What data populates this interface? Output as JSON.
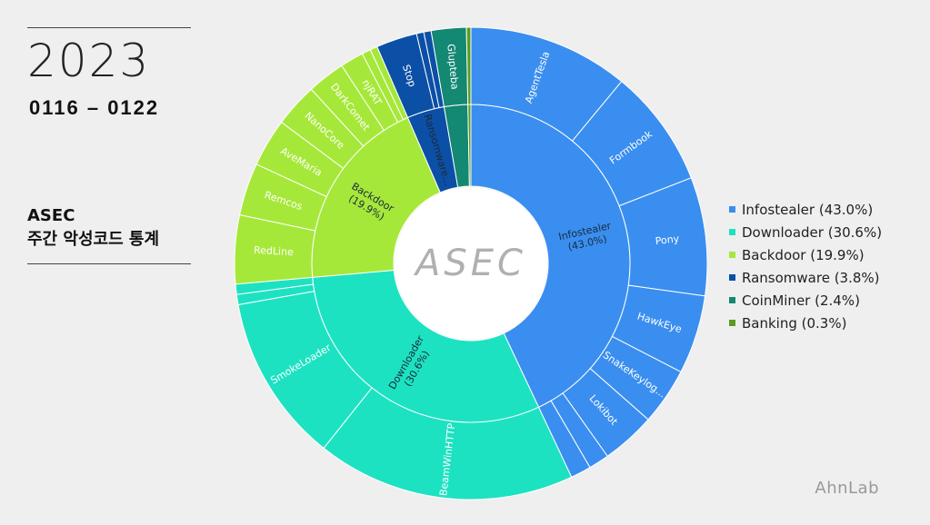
{
  "header": {
    "year": "2023",
    "date_range": "0116 – 0122",
    "title_line1": "ASEC",
    "title_line2": "주간 악성코드 통계"
  },
  "center_logo": "ASEC",
  "brand": "AhnLab",
  "colors": {
    "Infostealer": "#3a8ef0",
    "Downloader": "#1de2c2",
    "Backdoor": "#a6e83a",
    "Ransomware": "#0c4fa6",
    "CoinMiner": "#138872",
    "Banking": "#5a9c1e"
  },
  "chart_data": {
    "type": "sunburst",
    "title": "",
    "legend_position": "right",
    "categories": [
      {
        "name": "Infostealer",
        "label": "Infostealer\n(43.0%)",
        "legend": "Infostealer (43.0%)",
        "value": 43.0,
        "children": [
          {
            "name": "AgentTesla",
            "value": 11.0
          },
          {
            "name": "Formbook",
            "value": 8.1
          },
          {
            "name": "Pony",
            "value": 8.1
          },
          {
            "name": "HawkEye",
            "value": 5.4
          },
          {
            "name": "SnakeKeylog...",
            "value": 3.9
          },
          {
            "name": "Lokibot",
            "value": 3.7
          },
          {
            "name": "",
            "value": 1.4
          },
          {
            "name": "",
            "value": 1.4
          }
        ]
      },
      {
        "name": "Downloader",
        "label": "Downloader\n(30.6%)",
        "legend": "Downloader (30.6%)",
        "value": 30.6,
        "children": [
          {
            "name": "BeamWinHTTP",
            "value": 17.7
          },
          {
            "name": "SmokeLoader",
            "value": 11.5
          },
          {
            "name": "",
            "value": 0.7
          },
          {
            "name": "",
            "value": 0.7
          }
        ]
      },
      {
        "name": "Backdoor",
        "label": "Backdoor\n(19.9%)",
        "legend": "Backdoor (19.9%)",
        "value": 19.9,
        "children": [
          {
            "name": "RedLine",
            "value": 4.7
          },
          {
            "name": "Remcos",
            "value": 3.6
          },
          {
            "name": "AveMaria",
            "value": 3.3
          },
          {
            "name": "NanoCore",
            "value": 3.0
          },
          {
            "name": "DarkComet",
            "value": 2.6
          },
          {
            "name": "njRAT",
            "value": 1.6
          },
          {
            "name": "",
            "value": 0.6
          },
          {
            "name": "",
            "value": 0.5
          }
        ]
      },
      {
        "name": "Ransomware",
        "label": "Ransomware...",
        "legend": "Ransomware (3.8%)",
        "value": 3.8,
        "children": [
          {
            "name": "Stop",
            "value": 2.8
          },
          {
            "name": "",
            "value": 0.5
          },
          {
            "name": "",
            "value": 0.5
          }
        ]
      },
      {
        "name": "CoinMiner",
        "label": "",
        "legend": "CoinMiner (2.4%)",
        "value": 2.4,
        "children": [
          {
            "name": "Glupteba",
            "value": 2.4
          }
        ]
      },
      {
        "name": "Banking",
        "label": "",
        "legend": "Banking (0.3%)",
        "value": 0.3,
        "children": [
          {
            "name": "",
            "value": 0.3
          }
        ]
      }
    ]
  }
}
